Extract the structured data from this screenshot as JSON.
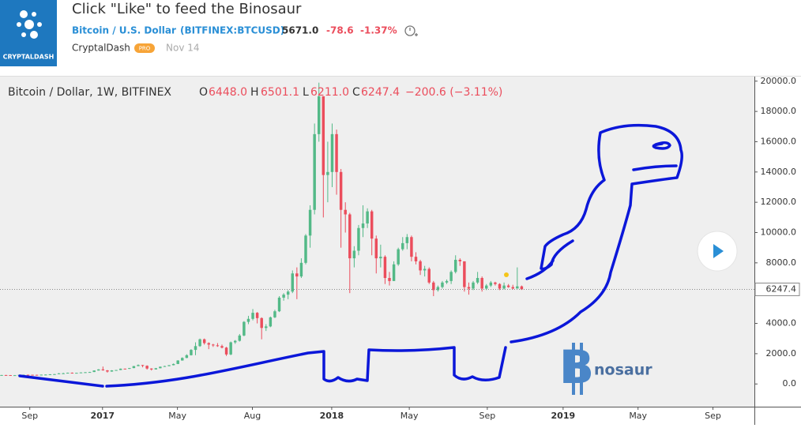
{
  "header": {
    "logo_text": "CRYPTALDASH",
    "title": "Click \"Like\" to feed the Binosaur",
    "symbol_name": "Bitcoin / U.S. Dollar",
    "symbol_code": "(BITFINEX:BTCUSD)",
    "price": "5671.0",
    "change": "-78.6",
    "change_pct": "-1.37%",
    "author": "CryptalDash",
    "badge": "PRO",
    "date": "Nov 14"
  },
  "chart_data": {
    "type": "candlestick",
    "title": "Bitcoin / Dollar, 1W, BITFINEX",
    "legend": {
      "o_label": "O",
      "o": "6448.0",
      "h_label": "H",
      "h": "6501.1",
      "l_label": "L",
      "l": "6211.0",
      "c_label": "C",
      "c": "6247.4",
      "change": "−200.6 (−3.11%)"
    },
    "last_price_label": "6247.4",
    "up_color": "#53b987",
    "down_color": "#eb4d5c",
    "annotation": {
      "symbol": "B",
      "text": "nosaur"
    },
    "x": [
      0,
      1,
      2,
      3,
      4,
      5,
      6,
      7,
      8,
      9,
      10,
      11,
      12,
      13,
      14,
      15,
      16,
      17,
      18,
      19,
      20,
      21,
      22,
      23,
      24,
      25,
      26,
      27,
      28,
      29,
      30,
      31,
      32,
      33,
      34,
      35,
      36,
      37,
      38,
      39,
      40,
      41,
      42,
      43,
      44,
      45,
      46,
      47,
      48,
      49,
      50,
      51,
      52,
      53,
      54,
      55,
      56,
      57,
      58,
      59,
      60,
      61,
      62,
      63,
      64,
      65,
      66,
      67,
      68,
      69,
      70,
      71,
      72,
      73,
      74,
      75,
      76,
      77,
      78,
      79,
      80,
      81,
      82,
      83,
      84,
      85,
      86,
      87,
      88,
      89,
      90,
      91,
      92,
      93,
      94,
      95,
      96,
      97,
      98,
      99,
      100,
      101,
      102,
      103,
      104,
      105,
      106,
      107,
      108,
      109,
      110,
      111,
      112,
      113,
      114,
      115,
      116,
      117,
      118
    ],
    "open": [
      570,
      590,
      585,
      575,
      580,
      605,
      610,
      608,
      605,
      600,
      615,
      620,
      640,
      650,
      700,
      705,
      740,
      730,
      735,
      760,
      775,
      790,
      890,
      960,
      900,
      820,
      900,
      920,
      1010,
      1000,
      1050,
      1180,
      1250,
      1200,
      1020,
      960,
      1040,
      1140,
      1180,
      1240,
      1320,
      1550,
      1720,
      1900,
      2250,
      2500,
      2950,
      2700,
      2600,
      2550,
      2500,
      2400,
      1950,
      2750,
      2850,
      3200,
      4100,
      4300,
      4700,
      4350,
      3700,
      3800,
      4400,
      4800,
      5700,
      5900,
      6100,
      7300,
      7100,
      8000,
      9800,
      11500,
      16500,
      19000,
      13800,
      14000,
      16500,
      14000,
      11500,
      11200,
      8300,
      8800,
      10300,
      10600,
      11400,
      9600,
      8300,
      8400,
      7000,
      6800,
      7900,
      8900,
      9300,
      9700,
      8400,
      8100,
      7500,
      7600,
      6700,
      6200,
      6400,
      6700,
      6800,
      7400,
      8200,
      8100,
      6400,
      6300,
      6700,
      7000,
      6300,
      6500,
      6700,
      6600,
      6300,
      6500,
      6400,
      6300,
      6448
    ],
    "high": [
      600,
      600,
      590,
      590,
      615,
      620,
      615,
      612,
      610,
      620,
      630,
      645,
      660,
      720,
      740,
      750,
      760,
      745,
      770,
      785,
      800,
      900,
      980,
      1150,
      920,
      910,
      930,
      1020,
      1020,
      1060,
      1190,
      1290,
      1260,
      1230,
      1040,
      1060,
      1150,
      1200,
      1250,
      1350,
      1570,
      1760,
      1960,
      2300,
      2750,
      3000,
      3000,
      2750,
      2650,
      2700,
      2600,
      2450,
      2800,
      2900,
      3300,
      4150,
      4500,
      4950,
      4750,
      4400,
      3950,
      4450,
      4900,
      5800,
      6000,
      6200,
      7500,
      7700,
      8300,
      9900,
      11800,
      17200,
      19900,
      19000,
      16000,
      17200,
      16800,
      14200,
      12000,
      11300,
      9100,
      10500,
      11800,
      11600,
      11500,
      9800,
      9200,
      8500,
      7400,
      8100,
      9000,
      9700,
      9900,
      9800,
      8700,
      8200,
      7800,
      7700,
      6800,
      6500,
      6800,
      6900,
      7500,
      8500,
      8300,
      8100,
      6700,
      6800,
      7400,
      7100,
      6600,
      6800,
      6750,
      6650,
      6700,
      6600,
      6550,
      7700,
      6501.1
    ],
    "low": [
      565,
      580,
      540,
      570,
      575,
      600,
      600,
      595,
      595,
      598,
      610,
      615,
      635,
      645,
      690,
      700,
      720,
      725,
      730,
      755,
      770,
      785,
      880,
      880,
      750,
      810,
      890,
      915,
      980,
      990,
      1040,
      1170,
      1100,
      950,
      890,
      950,
      1030,
      1130,
      1170,
      1230,
      1310,
      1540,
      1700,
      1880,
      1900,
      2450,
      2600,
      2300,
      2450,
      2450,
      2350,
      1850,
      1900,
      2650,
      2800,
      3150,
      3950,
      4200,
      4000,
      2950,
      3500,
      3750,
      4350,
      4750,
      5500,
      5600,
      6000,
      5600,
      7000,
      7900,
      9000,
      11200,
      16000,
      11000,
      12000,
      13000,
      12500,
      9000,
      10000,
      6000,
      7700,
      8500,
      9700,
      10300,
      8500,
      7300,
      7700,
      6600,
      6500,
      6800,
      7800,
      8800,
      8900,
      8100,
      7900,
      7200,
      7100,
      6600,
      5800,
      6100,
      6300,
      6600,
      6600,
      7300,
      7800,
      6100,
      5900,
      6200,
      6600,
      6100,
      6200,
      6400,
      6500,
      6200,
      6250,
      6350,
      6250,
      6300,
      6211
    ],
    "close": [
      590,
      585,
      575,
      580,
      605,
      610,
      608,
      605,
      600,
      615,
      620,
      640,
      650,
      700,
      705,
      740,
      730,
      735,
      760,
      775,
      790,
      890,
      960,
      900,
      820,
      900,
      920,
      1010,
      1000,
      1050,
      1180,
      1250,
      1200,
      1020,
      960,
      1040,
      1140,
      1180,
      1240,
      1320,
      1550,
      1720,
      1900,
      2250,
      2500,
      2950,
      2700,
      2600,
      2550,
      2500,
      2400,
      1950,
      2750,
      2850,
      3200,
      4100,
      4300,
      4700,
      4350,
      3700,
      3800,
      4400,
      4800,
      5700,
      5900,
      6100,
      7300,
      7100,
      8000,
      9800,
      11500,
      16500,
      19000,
      13800,
      14000,
      16500,
      14000,
      11500,
      11200,
      8300,
      8800,
      10300,
      10600,
      11400,
      9600,
      8300,
      8400,
      7000,
      6800,
      7900,
      8900,
      9300,
      9700,
      8400,
      8100,
      7500,
      7600,
      6700,
      6200,
      6400,
      6700,
      6800,
      7400,
      8200,
      8100,
      6400,
      6300,
      6700,
      7000,
      6300,
      6500,
      6700,
      6600,
      6300,
      6500,
      6400,
      6300,
      6448,
      6247.4
    ],
    "xlim": [
      -0.36,
      170.8
    ],
    "ylim": [
      -1500,
      20300
    ],
    "xticks": [
      {
        "value": 6.4,
        "label": "Sep"
      },
      {
        "value": 22.9,
        "label": "2017"
      },
      {
        "value": 39.9,
        "label": "May"
      },
      {
        "value": 56.9,
        "label": "Aug"
      },
      {
        "value": 74.9,
        "label": "2018"
      },
      {
        "value": 92.5,
        "label": "May"
      },
      {
        "value": 110.2,
        "label": "Sep"
      },
      {
        "value": 127.4,
        "label": "2019"
      },
      {
        "value": 144.4,
        "label": "May"
      },
      {
        "value": 161.4,
        "label": "Sep"
      }
    ],
    "yticks": [
      {
        "value": 0,
        "label": "0.0"
      },
      {
        "value": 2000,
        "label": "2000.0"
      },
      {
        "value": 4000,
        "label": "4000.0"
      },
      {
        "value": 6000,
        "label": "6000.0"
      },
      {
        "value": 8000,
        "label": "8000.0"
      },
      {
        "value": 10000,
        "label": "10000.0"
      },
      {
        "value": 12000,
        "label": "12000.0"
      },
      {
        "value": 14000,
        "label": "14000.0"
      },
      {
        "value": 16000,
        "label": "16000.0"
      },
      {
        "value": 18000,
        "label": "18000.0"
      },
      {
        "value": 20000,
        "label": "20000.0"
      }
    ]
  }
}
